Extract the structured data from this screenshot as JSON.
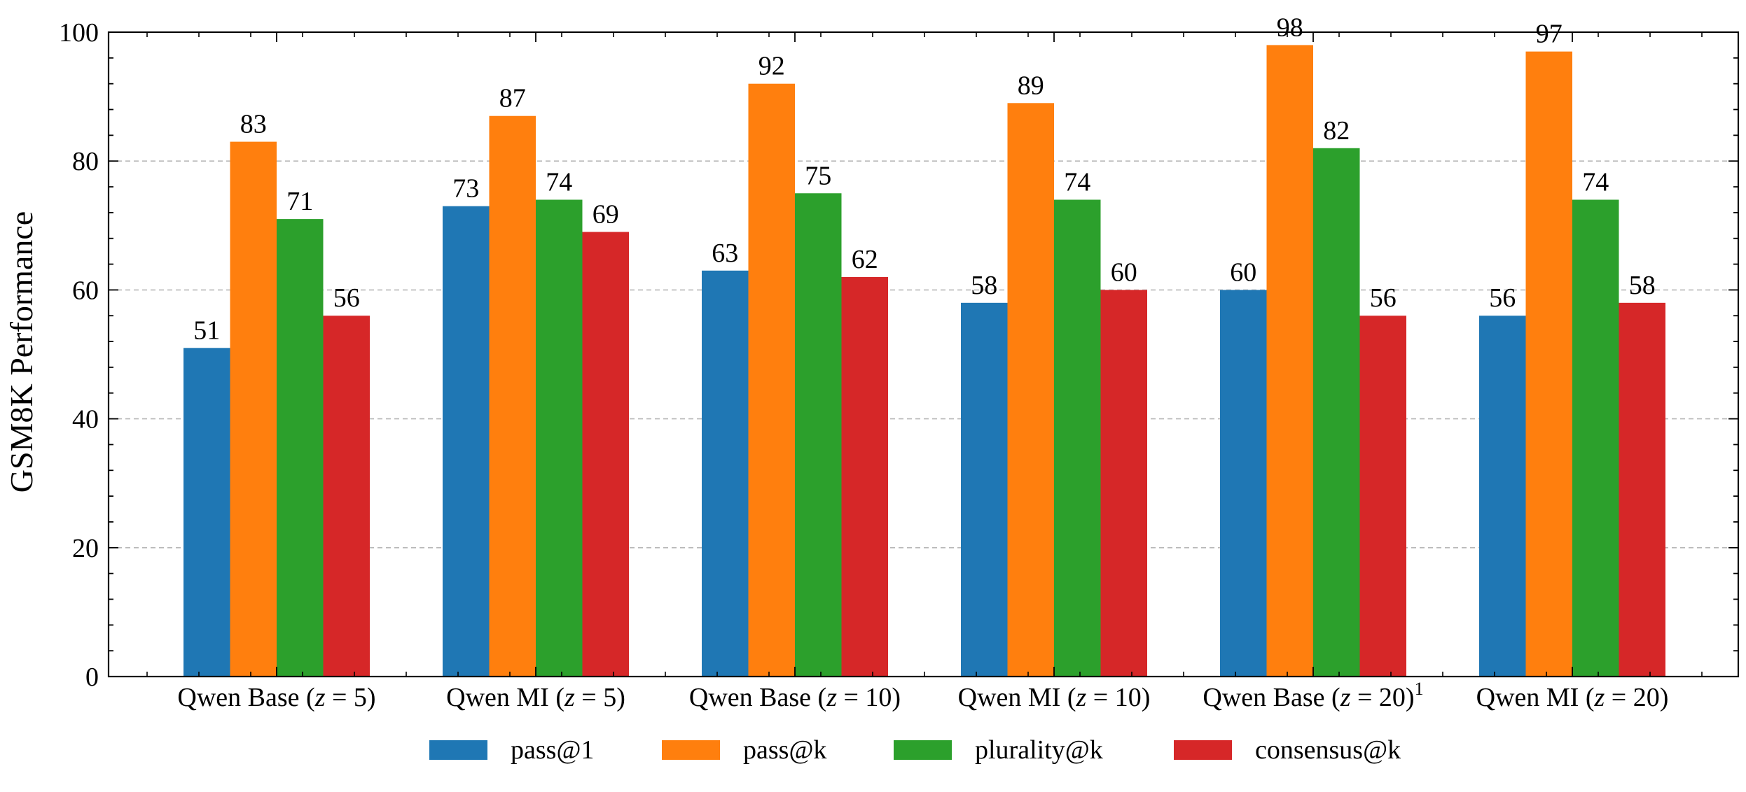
{
  "chart_data": {
    "type": "bar",
    "title": "",
    "xlabel": "",
    "ylabel": "GSM8K Performance",
    "ylim": [
      0,
      100
    ],
    "yticks": [
      0,
      20,
      40,
      60,
      80,
      100
    ],
    "grid": "horizontal dashed",
    "legend_position": "bottom",
    "categories": [
      "Qwen Base (z = 5)",
      "Qwen MI (z = 5)",
      "Qwen Base (z = 10)",
      "Qwen MI (z = 10)",
      "Qwen Base (z = 20)¹",
      "Qwen MI (z = 20)"
    ],
    "category_parts": [
      {
        "prefix": "Qwen Base (",
        "var": "z",
        "suffix": " = 5)",
        "sup": ""
      },
      {
        "prefix": "Qwen MI (",
        "var": "z",
        "suffix": " = 5)",
        "sup": ""
      },
      {
        "prefix": "Qwen Base (",
        "var": "z",
        "suffix": " = 10)",
        "sup": ""
      },
      {
        "prefix": "Qwen MI (",
        "var": "z",
        "suffix": " = 10)",
        "sup": ""
      },
      {
        "prefix": "Qwen Base (",
        "var": "z",
        "suffix": " = 20)",
        "sup": "1"
      },
      {
        "prefix": "Qwen MI (",
        "var": "z",
        "suffix": " = 20)",
        "sup": ""
      }
    ],
    "series": [
      {
        "name": "pass@1",
        "color": "#1f77b4",
        "values": [
          51,
          73,
          63,
          58,
          60,
          56
        ]
      },
      {
        "name": "pass@k",
        "color": "#ff7f0e",
        "values": [
          83,
          87,
          92,
          89,
          98,
          97
        ]
      },
      {
        "name": "plurality@k",
        "color": "#2ca02c",
        "values": [
          71,
          74,
          75,
          74,
          82,
          74
        ]
      },
      {
        "name": "consensus@k",
        "color": "#d62728",
        "values": [
          56,
          69,
          62,
          60,
          56,
          58
        ]
      }
    ]
  }
}
